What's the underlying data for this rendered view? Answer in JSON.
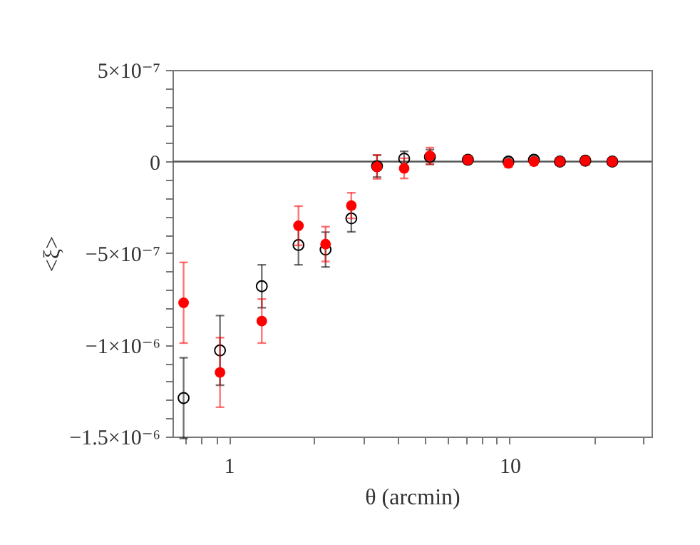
{
  "chart_data": {
    "type": "scatter",
    "xlabel": "θ (arcmin)",
    "ylabel": "<ξ>",
    "log": "x",
    "marker": "circle",
    "grid": false,
    "x": [
      0.69,
      0.93,
      1.31,
      1.77,
      2.21,
      2.73,
      3.37,
      4.21,
      5.2,
      7.1,
      9.9,
      12.2,
      15.1,
      18.6,
      23.2
    ],
    "series": [
      {
        "color": "#000000",
        "values": [
          -1.29e-06,
          -1.03e-06,
          -6.8e-07,
          -4.55e-07,
          -4.8e-07,
          -3.1e-07,
          -2.5e-08,
          1.6e-08,
          2.5e-08,
          1e-08,
          0,
          1e-08,
          0,
          5e-09,
          0
        ],
        "errors": [
          2.2e-07,
          1.9e-07,
          1.17e-07,
          1.08e-07,
          9.5e-08,
          7.3e-08,
          6e-08,
          4e-08,
          4e-08,
          2e-08,
          2e-08,
          2e-08,
          2e-08,
          2e-08,
          2e-08
        ]
      },
      {
        "color": "#ff0000",
        "values": [
          -7.7e-07,
          -1.15e-06,
          -8.7e-07,
          -3.5e-07,
          -4.5e-07,
          -2.4e-07,
          -2.9e-08,
          -3.7e-08,
          3.1e-08,
          1e-08,
          -1e-08,
          0,
          0,
          5e-09,
          0
        ],
        "errors": [
          2.2e-07,
          1.9e-07,
          1.2e-07,
          1.07e-07,
          9.5e-08,
          7e-08,
          6.5e-08,
          5.5e-08,
          4.5e-08,
          2e-08,
          2e-08,
          2e-08,
          2e-08,
          2e-08,
          2e-08
        ]
      }
    ],
    "xlim": [
      0.63,
      32
    ],
    "xticks": [
      {
        "value": 0.7,
        "label": null
      },
      {
        "value": 0.8,
        "label": null
      },
      {
        "value": 0.9,
        "label": null
      },
      1,
      {
        "value": 2,
        "label": null
      },
      {
        "value": 3,
        "label": null
      },
      {
        "value": 4,
        "label": null
      },
      {
        "value": 5,
        "label": null
      },
      {
        "value": 6,
        "label": null
      },
      {
        "value": 7,
        "label": null
      },
      {
        "value": 8,
        "label": null
      },
      {
        "value": 9,
        "label": null
      },
      10,
      {
        "value": 20,
        "label": null
      },
      {
        "value": 30,
        "label": null
      }
    ],
    "ylim": [
      -1.5e-06,
      5e-07
    ],
    "yticks": [
      {
        "value": -1.5e-06,
        "label": "−1.5×10⁻⁶"
      },
      {
        "value": -1.4e-06,
        "label": null
      },
      {
        "value": -1.3e-06,
        "label": null
      },
      {
        "value": -1.2e-06,
        "label": null
      },
      {
        "value": -1.1e-06,
        "label": null
      },
      {
        "value": -1e-06,
        "label": "−1×10⁻⁶"
      },
      {
        "value": -9e-07,
        "label": null
      },
      {
        "value": -8e-07,
        "label": null
      },
      {
        "value": -7e-07,
        "label": null
      },
      {
        "value": -6e-07,
        "label": null
      },
      {
        "value": -5e-07,
        "label": "−5×10⁻⁷"
      },
      {
        "value": -4e-07,
        "label": null
      },
      {
        "value": -3e-07,
        "label": null
      },
      {
        "value": -2e-07,
        "label": null
      },
      {
        "value": -1e-07,
        "label": null
      },
      0,
      {
        "value": 1e-07,
        "label": null
      },
      {
        "value": 2e-07,
        "label": null
      },
      {
        "value": 3e-07,
        "label": null
      },
      {
        "value": 4e-07,
        "label": null
      },
      {
        "value": 5e-07,
        "label": "5×10⁻⁷"
      }
    ],
    "ref_lines": [
      {
        "axis": "y",
        "value": 0,
        "color": "#555555"
      }
    ]
  }
}
